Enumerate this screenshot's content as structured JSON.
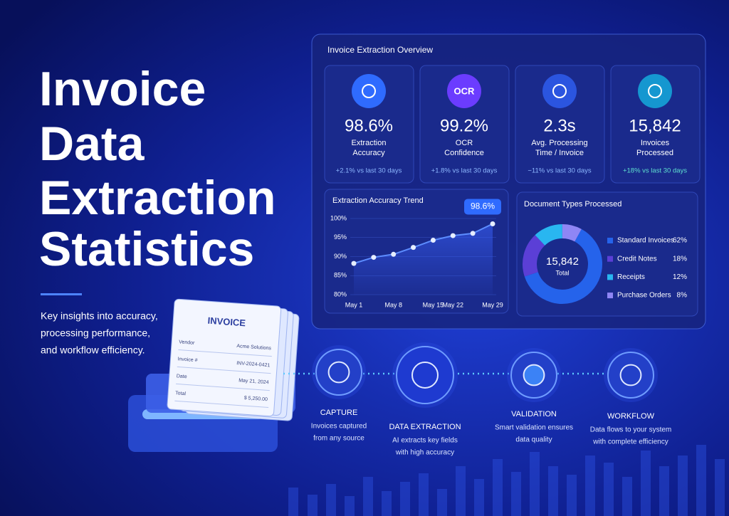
{
  "header": {
    "title_lines": [
      "Invoice",
      "Data",
      "Extraction",
      "Statistics"
    ],
    "subtitle_lines": [
      "Key insights into accuracy,",
      "processing performance,",
      "and workflow efficiency."
    ]
  },
  "invoice": {
    "title": "INVOICE",
    "rows": [
      [
        "Vendor",
        "Acme Solutions"
      ],
      [
        "Invoice #",
        "INV-2024-0421"
      ],
      [
        "Date",
        "May 21, 2024"
      ],
      [
        "Total",
        "$ 5,250.00"
      ]
    ]
  },
  "panel": {
    "title": "Invoice Extraction Overview",
    "kpis": [
      {
        "value": "98.6%",
        "label_lines": [
          "Extraction",
          "Accuracy"
        ],
        "change": "+2.1% vs last 30 days",
        "color": "#2f6bff"
      },
      {
        "icon_text": "OCR",
        "value": "99.2%",
        "label_lines": [
          "OCR",
          "Confidence"
        ],
        "change": "+1.8% vs last 30 days",
        "color": "#6b3cff"
      },
      {
        "value": "2.3s",
        "label_lines": [
          "Avg. Processing",
          "Time / Invoice"
        ],
        "change": "−11% vs last 30 days",
        "color": "#2b55e0"
      },
      {
        "value": "15,842",
        "label_lines": [
          "Invoices",
          "Processed"
        ],
        "change": "+18% vs last 30 days",
        "color": "#1597d0"
      }
    ]
  },
  "chart_data": [
    {
      "type": "line",
      "title": "Extraction Accuracy Trend",
      "categories": [
        "May 1",
        null,
        "May 8",
        null,
        "May 15",
        "May 22",
        null,
        "May 29"
      ],
      "values": [
        88.2,
        89.8,
        90.6,
        92.4,
        94.3,
        95.5,
        96.1,
        98.6
      ],
      "value_labels": [
        null,
        null,
        null,
        null,
        null,
        null,
        null,
        "98.6%"
      ],
      "color": "#5d8dff",
      "ylim": [
        80,
        100
      ],
      "yticks": [
        {
          "value": 80,
          "label": "80%"
        },
        {
          "value": 85,
          "label": "85%"
        },
        {
          "value": 90,
          "label": "90%"
        },
        {
          "value": 95,
          "label": "95%"
        },
        {
          "value": 100,
          "label": "100%"
        }
      ]
    },
    {
      "type": "pie",
      "title": "Document Types Processed",
      "center_value": "15,842",
      "center_label": "Total",
      "categories": [
        "Standard Invoices",
        "Credit Notes",
        "Receipts",
        "Purchase Orders"
      ],
      "values": [
        62,
        18,
        12,
        8
      ],
      "value_labels": [
        "62%",
        "18%",
        "12%",
        "8%"
      ],
      "colors": [
        "#2563eb",
        "#5b3fd6",
        "#29b6f0",
        "#8f86f5"
      ]
    }
  ],
  "pipeline": [
    {
      "title": "CAPTURE",
      "description_lines": [
        "Invoices captured",
        "from any source"
      ]
    },
    {
      "title": "DATA EXTRACTION",
      "description_lines": [
        "AI extracts key fields",
        "with high accuracy"
      ]
    },
    {
      "title": "VALIDATION",
      "description_lines": [
        "Smart validation ensures",
        "data quality"
      ]
    },
    {
      "title": "WORKFLOW",
      "description_lines": [
        "Data flows to your system",
        "with complete efficiency"
      ]
    }
  ]
}
